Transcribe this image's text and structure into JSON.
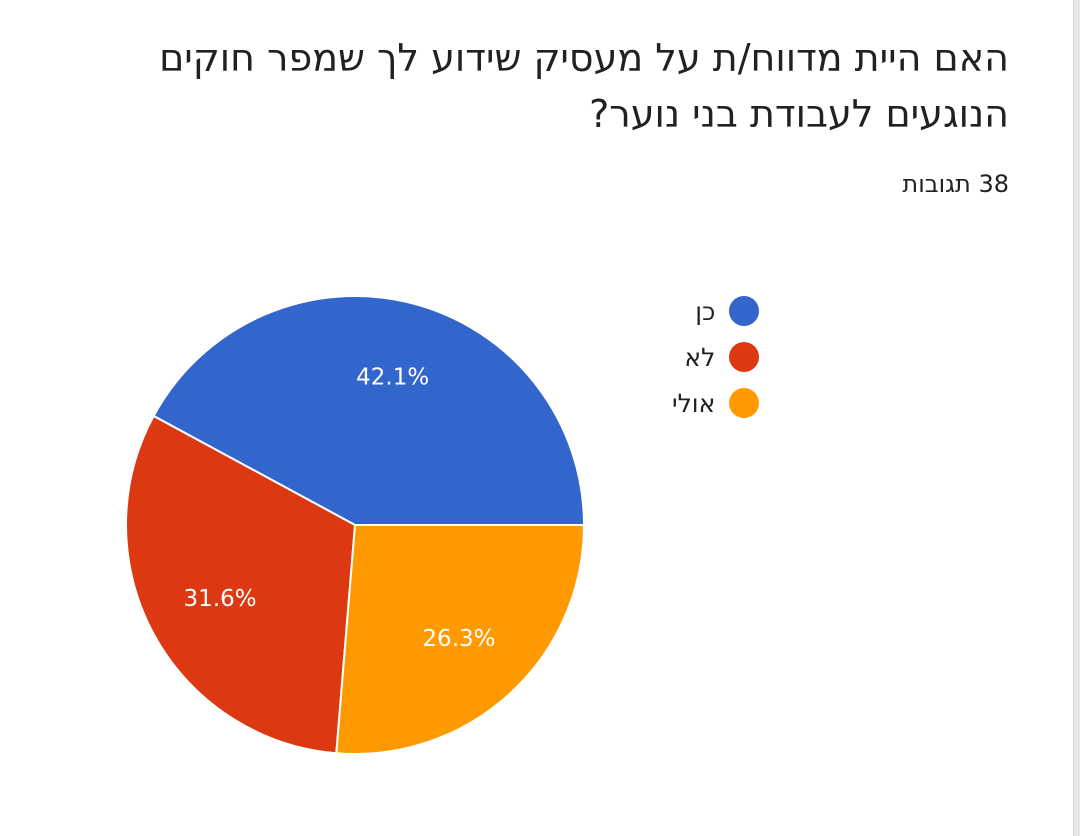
{
  "question": "האם היית מדווח/ת על מעסיק שידוע לך שמפר חוקים הנוגעים לעבודת בני נוער?",
  "response_count": "38 תגובות",
  "chart_data": {
    "type": "pie",
    "categories": [
      "כן",
      "לא",
      "אולי"
    ],
    "values": [
      42.1,
      31.6,
      26.3
    ],
    "data_labels": [
      "42.1%",
      "31.6%",
      "26.3%"
    ],
    "colors": [
      "#3366cc",
      "#dc3912",
      "#ff9900"
    ],
    "legend_position": "right"
  }
}
